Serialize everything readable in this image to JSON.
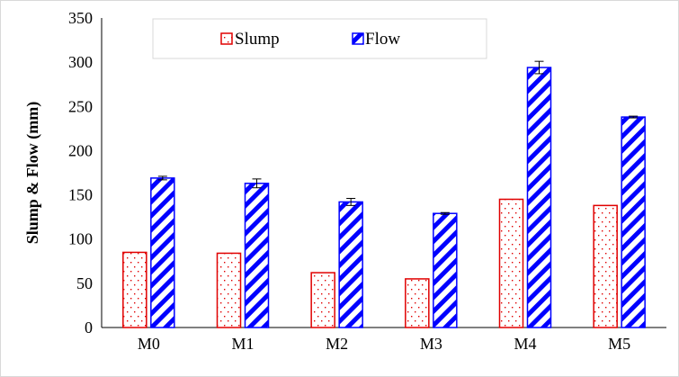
{
  "chart_data": {
    "type": "bar",
    "title": "",
    "xlabel": "",
    "ylabel": "Slump & Flow  (mm)",
    "ylim": [
      0,
      350
    ],
    "yticks": [
      "0",
      "50",
      "100",
      "150",
      "200",
      "250",
      "300",
      "350"
    ],
    "categories": [
      "M0",
      "M1",
      "M2",
      "M3",
      "M4",
      "M5"
    ],
    "series": [
      {
        "name": "Slump",
        "values": [
          85,
          84,
          62,
          55,
          145,
          138
        ],
        "errors": [
          0,
          0,
          0,
          0,
          0,
          0
        ],
        "color": "#e00000",
        "pattern": "dotted"
      },
      {
        "name": "Flow",
        "values": [
          169,
          163,
          142,
          129,
          294,
          238
        ],
        "errors": [
          2,
          5,
          4,
          1,
          7,
          1
        ],
        "color": "#0000ff",
        "pattern": "diagonal-stripes"
      }
    ],
    "legend": {
      "position": "top-center"
    },
    "grid": false
  }
}
